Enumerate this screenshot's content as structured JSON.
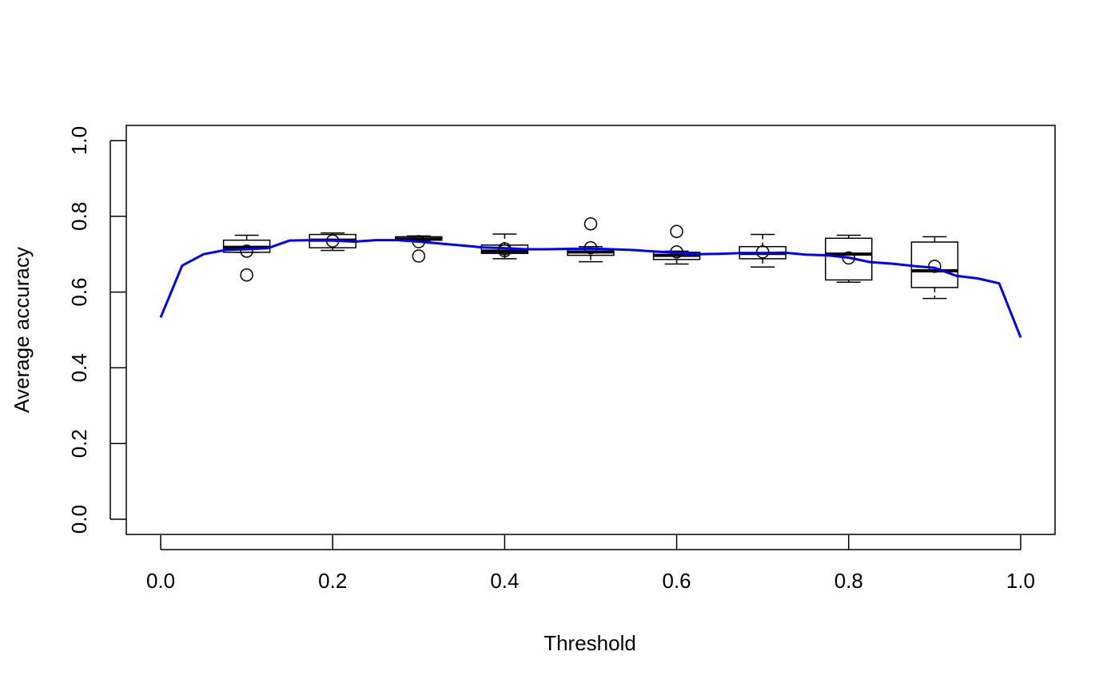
{
  "chart_data": {
    "type": "box+line",
    "title": "",
    "xlabel": "Threshold",
    "ylabel": "Average accuracy",
    "xlim": [
      -0.04,
      1.04
    ],
    "ylim": [
      -0.04,
      1.04
    ],
    "xticks": [
      "0.0",
      "0.2",
      "0.4",
      "0.6",
      "0.8",
      "1.0"
    ],
    "yticks": [
      "0.0",
      "0.2",
      "0.4",
      "0.6",
      "0.8",
      "1.0"
    ],
    "grid": false,
    "colors": {
      "line": "#0000ff",
      "box": "#000000"
    },
    "boxplots": [
      {
        "x": 0.1,
        "whisker_low": 0.705,
        "q1": 0.705,
        "median": 0.718,
        "q3": 0.737,
        "whisker_high": 0.75,
        "points": [
          0.708,
          0.645
        ]
      },
      {
        "x": 0.2,
        "whisker_low": 0.71,
        "q1": 0.717,
        "median": 0.737,
        "q3": 0.752,
        "whisker_high": 0.756,
        "points": [
          0.735
        ]
      },
      {
        "x": 0.3,
        "whisker_low": 0.735,
        "q1": 0.737,
        "median": 0.74,
        "q3": 0.746,
        "whisker_high": 0.748,
        "points": [
          0.733,
          0.695
        ]
      },
      {
        "x": 0.4,
        "whisker_low": 0.688,
        "q1": 0.702,
        "median": 0.708,
        "q3": 0.724,
        "whisker_high": 0.753,
        "points": [
          0.714,
          0.709
        ]
      },
      {
        "x": 0.5,
        "whisker_low": 0.68,
        "q1": 0.697,
        "median": 0.706,
        "q3": 0.713,
        "whisker_high": 0.72,
        "points": [
          0.78,
          0.717
        ]
      },
      {
        "x": 0.6,
        "whisker_low": 0.674,
        "q1": 0.686,
        "median": 0.697,
        "q3": 0.705,
        "whisker_high": 0.708,
        "points": [
          0.76,
          0.706
        ]
      },
      {
        "x": 0.7,
        "whisker_low": 0.666,
        "q1": 0.688,
        "median": 0.702,
        "q3": 0.72,
        "whisker_high": 0.752,
        "points": [
          0.706
        ]
      },
      {
        "x": 0.8,
        "whisker_low": 0.626,
        "q1": 0.632,
        "median": 0.7,
        "q3": 0.742,
        "whisker_high": 0.75,
        "points": [
          0.69
        ]
      },
      {
        "x": 0.9,
        "whisker_low": 0.583,
        "q1": 0.612,
        "median": 0.656,
        "q3": 0.732,
        "whisker_high": 0.746,
        "points": [
          0.668
        ]
      }
    ],
    "series": [
      {
        "x": [
          0.0,
          0.025,
          0.05,
          0.075,
          0.1,
          0.125,
          0.15,
          0.175,
          0.2,
          0.225,
          0.25,
          0.275,
          0.3,
          0.325,
          0.35,
          0.375,
          0.4,
          0.425,
          0.45,
          0.475,
          0.5,
          0.525,
          0.55,
          0.575,
          0.6,
          0.625,
          0.65,
          0.675,
          0.7,
          0.725,
          0.75,
          0.775,
          0.8,
          0.825,
          0.85,
          0.875,
          0.9,
          0.925,
          0.95,
          0.975,
          1.0
        ],
        "y": [
          0.533,
          0.67,
          0.7,
          0.711,
          0.713,
          0.716,
          0.736,
          0.737,
          0.736,
          0.733,
          0.737,
          0.737,
          0.733,
          0.728,
          0.723,
          0.718,
          0.716,
          0.713,
          0.713,
          0.714,
          0.715,
          0.713,
          0.711,
          0.707,
          0.704,
          0.7,
          0.701,
          0.703,
          0.703,
          0.704,
          0.699,
          0.697,
          0.691,
          0.679,
          0.675,
          0.669,
          0.664,
          0.643,
          0.636,
          0.623,
          0.48
        ]
      }
    ]
  }
}
